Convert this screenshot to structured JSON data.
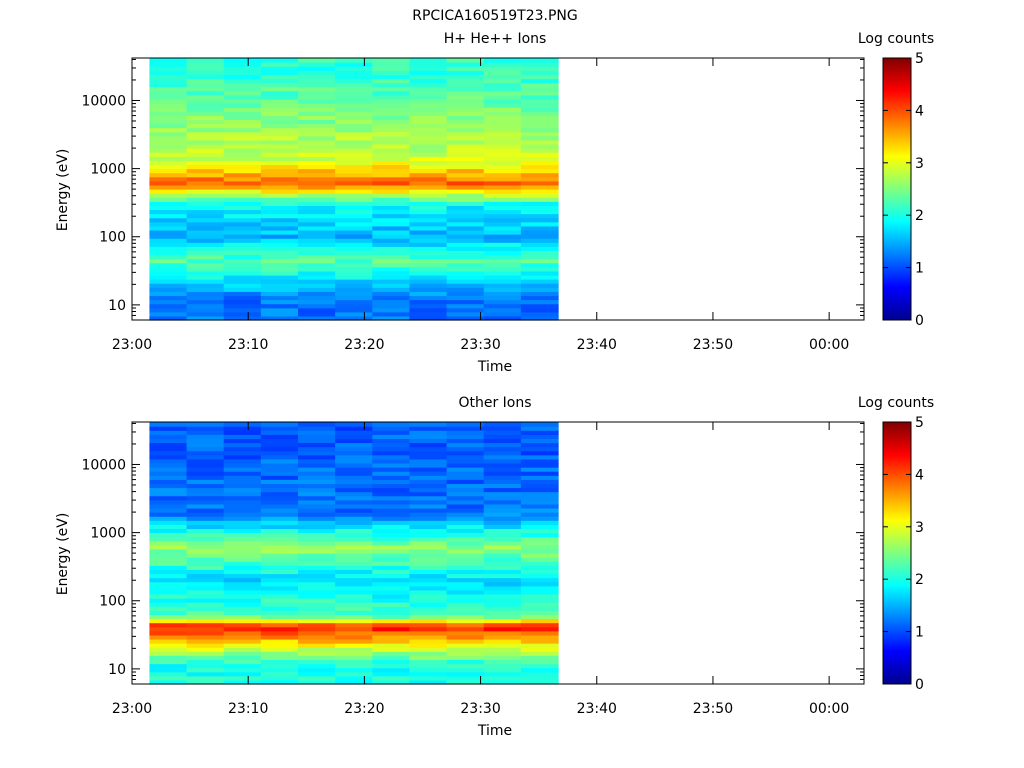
{
  "figure_title": "RPCICA160519T23.PNG",
  "chart_data": [
    {
      "type": "heatmap",
      "title": "H+ He++ Ions",
      "xlabel": "Time",
      "ylabel": "Energy (eV)",
      "colorbar_label": "Log counts",
      "yscale": "log",
      "ylim": [
        6,
        42000
      ],
      "y_ticks": [
        10,
        100,
        1000,
        10000
      ],
      "y_tick_labels": [
        "10",
        "100",
        "1000",
        "10000"
      ],
      "x_range": [
        "23:00",
        "00:03"
      ],
      "x_tick_labels": [
        "23:00",
        "23:10",
        "23:20",
        "23:30",
        "23:40",
        "23:50",
        "00:00"
      ],
      "data_time_range": [
        "23:01:30",
        "23:36:40"
      ],
      "colorbar_range": [
        0,
        5
      ],
      "colorbar_ticks": [
        "0",
        "1",
        "2",
        "3",
        "4",
        "5"
      ],
      "colormap": "jet",
      "energy_bands_log_counts": [
        {
          "energy_ev": 25000,
          "value": 2.1
        },
        {
          "energy_ev": 1350,
          "value": 2.9
        },
        {
          "energy_ev": 620,
          "value": 3.9
        },
        {
          "energy_ev": 300,
          "value": 1.9
        },
        {
          "energy_ev": 100,
          "value": 1.5
        },
        {
          "energy_ev": 45,
          "value": 2.3
        },
        {
          "energy_ev": 12,
          "value": 1.2
        }
      ]
    },
    {
      "type": "heatmap",
      "title": "Other Ions",
      "xlabel": "Time",
      "ylabel": "Energy (eV)",
      "colorbar_label": "Log counts",
      "yscale": "log",
      "ylim": [
        6,
        42000
      ],
      "y_ticks": [
        10,
        100,
        1000,
        10000
      ],
      "y_tick_labels": [
        "10",
        "100",
        "1000",
        "10000"
      ],
      "x_range": [
        "23:00",
        "00:03"
      ],
      "x_tick_labels": [
        "23:00",
        "23:10",
        "23:20",
        "23:30",
        "23:40",
        "23:50",
        "00:00"
      ],
      "data_time_range": [
        "23:01:30",
        "23:36:40"
      ],
      "colorbar_range": [
        0,
        5
      ],
      "colorbar_ticks": [
        "0",
        "1",
        "2",
        "3",
        "4",
        "5"
      ],
      "colormap": "jet",
      "energy_bands_log_counts": [
        {
          "energy_ev": 15000,
          "value": 1.1
        },
        {
          "energy_ev": 2000,
          "value": 1.2
        },
        {
          "energy_ev": 600,
          "value": 2.6
        },
        {
          "energy_ev": 200,
          "value": 1.7
        },
        {
          "energy_ev": 60,
          "value": 2.3
        },
        {
          "energy_ev": 42,
          "value": 4.3
        },
        {
          "energy_ev": 12,
          "value": 2.0
        }
      ]
    }
  ]
}
